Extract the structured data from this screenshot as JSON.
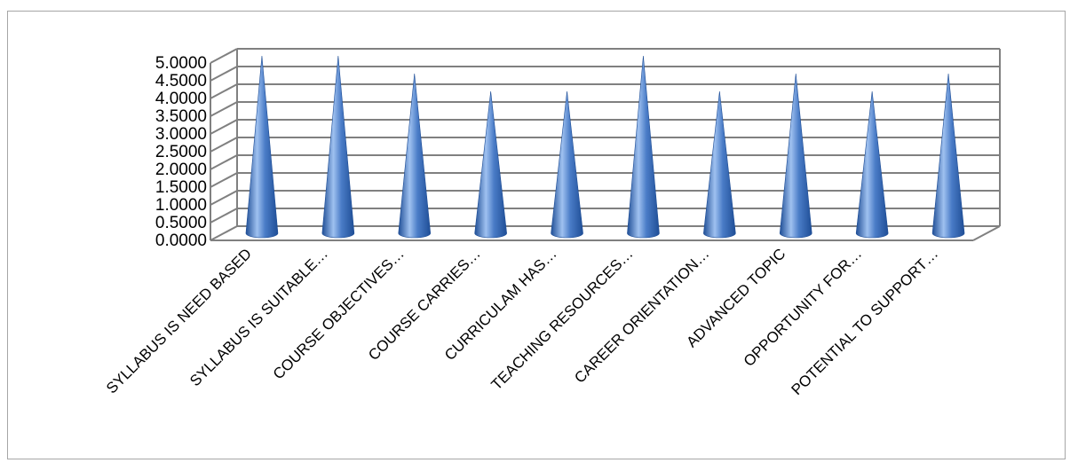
{
  "chart_data": {
    "type": "bar",
    "style": "3d-cone",
    "categories": [
      "SYLLABUS IS NEED BASED",
      "SYLLABUS IS SUITABLE…",
      "COURSE OBJECTIVES…",
      "COURSE CARRIES…",
      "CURRICULAM HAS…",
      "TEACHING RESOURCES…",
      "CAREER ORIENTATION…",
      "ADVANCED TOPIC",
      "OPPORTUNITY FOR…",
      "POTENTIAL TO SUPPORT…"
    ],
    "values": [
      5.0,
      5.0,
      4.5,
      4.0,
      4.0,
      5.0,
      4.0,
      4.5,
      4.0,
      4.5
    ],
    "ylim": [
      0,
      5
    ],
    "yticks": [
      "0.0000",
      "0.5000",
      "1.0000",
      "1.5000",
      "2.0000",
      "2.5000",
      "3.0000",
      "3.5000",
      "4.0000",
      "4.5000",
      "5.0000"
    ],
    "title": "",
    "xlabel": "",
    "ylabel": "",
    "grid": true,
    "legend": "none",
    "colors": {
      "cone": "#4a7cc7",
      "cone_light": "#9fc1f0",
      "cone_dark": "#1f4e96",
      "grid": "#808080",
      "wall": "#ffffff"
    }
  }
}
